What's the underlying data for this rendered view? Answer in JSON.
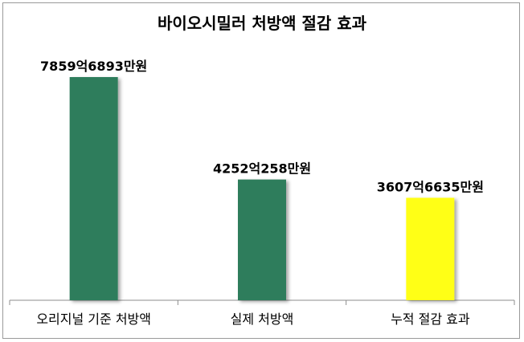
{
  "chart_data": {
    "type": "bar",
    "title": "바이오시밀러 처방액 절감 효과",
    "xlabel": "",
    "ylabel": "",
    "categories": [
      "오리지널 기준 처방액",
      "실제 처방액",
      "누적 절감 효과"
    ],
    "values": [
      785968930000,
      425202580000,
      360766350000
    ],
    "data_labels": [
      "7859억6893만원",
      "4252억258만원",
      "3607억6635만원"
    ],
    "colors": [
      "#2e7d5b",
      "#2e7d5b",
      "#ffff19"
    ],
    "ylim": [
      0,
      785968930000
    ],
    "grid": false,
    "legend": "none"
  }
}
